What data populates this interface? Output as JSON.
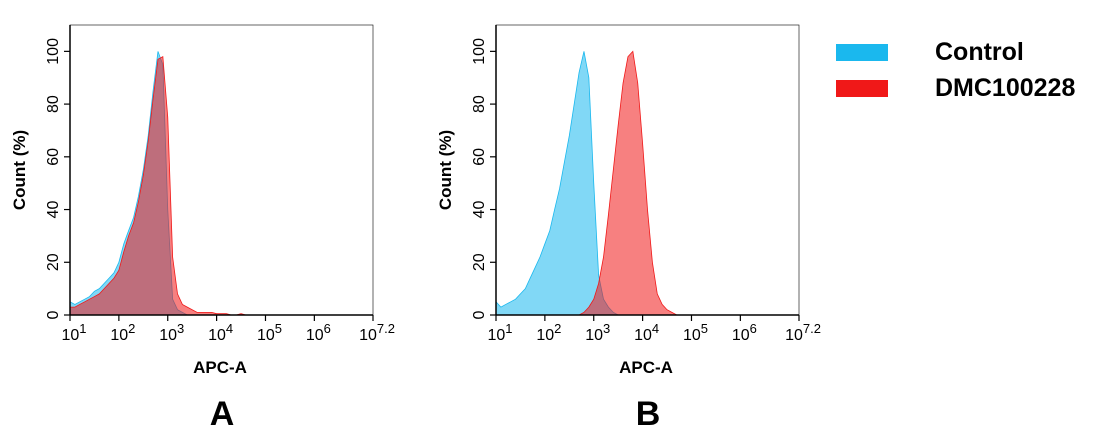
{
  "chart_data": [
    {
      "type": "area",
      "title": "A",
      "xlabel": "APC-A",
      "ylabel": "Count  (%)",
      "xscale": "log",
      "x": [
        10,
        12.6,
        15.8,
        20,
        25.1,
        31.6,
        39.8,
        50.1,
        63.1,
        79.4,
        100,
        126,
        158,
        200,
        251,
        316,
        398,
        501,
        631,
        794,
        1000,
        1259,
        1585,
        1995,
        2512,
        3162,
        3981,
        5012,
        6310,
        7943,
        10000,
        12589,
        15849,
        19953,
        25119,
        31623,
        39811,
        50119,
        63096,
        79433,
        100000
      ],
      "series": [
        {
          "name": "Control",
          "color": "#1ab8ee",
          "values": [
            5,
            4,
            5,
            6,
            7,
            9,
            10,
            12,
            14,
            16,
            20,
            27,
            32,
            37,
            45,
            55,
            68,
            85,
            100,
            95,
            40,
            6,
            2,
            1,
            0,
            0,
            0,
            0,
            0,
            0,
            0,
            0,
            0,
            0,
            0,
            0,
            0,
            0,
            0,
            0,
            0
          ]
        },
        {
          "name": "DMC100228",
          "color": "#f01818",
          "values": [
            3,
            3,
            4,
            5,
            6,
            7,
            8,
            10,
            12,
            14,
            17,
            24,
            30,
            35,
            43,
            53,
            66,
            82,
            97,
            98,
            75,
            22,
            8,
            4,
            3,
            2,
            1,
            1,
            1,
            1,
            0.5,
            0.5,
            0.5,
            0,
            0,
            0.5,
            0,
            0,
            0,
            0,
            0
          ]
        }
      ],
      "xlim": [
        10,
        15848932
      ],
      "ylim": [
        0,
        110
      ],
      "xticks": [
        {
          "value": 10,
          "label": "10^1"
        },
        {
          "value": 100,
          "label": "10^2"
        },
        {
          "value": 1000,
          "label": "10^3"
        },
        {
          "value": 10000,
          "label": "10^4"
        },
        {
          "value": 100000,
          "label": "10^5"
        },
        {
          "value": 1000000,
          "label": "10^6"
        },
        {
          "value": 15848932,
          "label": "10^7.2"
        }
      ],
      "yticks": [
        0,
        20,
        40,
        60,
        80,
        100
      ]
    },
    {
      "type": "area",
      "title": "B",
      "xlabel": "APC-A",
      "ylabel": "Count  (%)",
      "xscale": "log",
      "x": [
        10,
        12.6,
        15.8,
        20,
        25.1,
        31.6,
        39.8,
        50.1,
        63.1,
        79.4,
        100,
        126,
        158,
        200,
        251,
        316,
        398,
        501,
        631,
        794,
        1000,
        1259,
        1585,
        1995,
        2512,
        3162,
        3981,
        5012,
        6310,
        7943,
        10000,
        12589,
        15849,
        19953,
        25119,
        31623,
        39811,
        50119,
        63096,
        79433,
        100000
      ],
      "series": [
        {
          "color": "#1ab8ee",
          "values": [
            5,
            3,
            4,
            5,
            6,
            8,
            10,
            14,
            18,
            22,
            27,
            32,
            40,
            48,
            58,
            68,
            80,
            92,
            100,
            90,
            50,
            15,
            6,
            3,
            1,
            0,
            0,
            0,
            0,
            0,
            0,
            0,
            0,
            0,
            0,
            0,
            0,
            0,
            0,
            0,
            0
          ]
        },
        {
          "color": "#f01818",
          "values": [
            0,
            0,
            0,
            0,
            0,
            0,
            0,
            0,
            0,
            0,
            0,
            0,
            0,
            0,
            0,
            0,
            0,
            0,
            1,
            3,
            6,
            12,
            22,
            38,
            55,
            72,
            88,
            98,
            100,
            88,
            65,
            40,
            20,
            8,
            4,
            2,
            1,
            0,
            0,
            0,
            0
          ]
        }
      ],
      "xlim": [
        10,
        15848932
      ],
      "ylim": [
        0,
        110
      ],
      "xticks": [
        {
          "value": 10,
          "label": "10^1"
        },
        {
          "value": 100,
          "label": "10^2"
        },
        {
          "value": 1000,
          "label": "10^3"
        },
        {
          "value": 10000,
          "label": "10^4"
        },
        {
          "value": 100000,
          "label": "10^5"
        },
        {
          "value": 1000000,
          "label": "10^6"
        },
        {
          "value": 15848932,
          "label": "10^7.2"
        }
      ],
      "yticks": [
        0,
        20,
        40,
        60,
        80,
        100
      ]
    }
  ]
}
